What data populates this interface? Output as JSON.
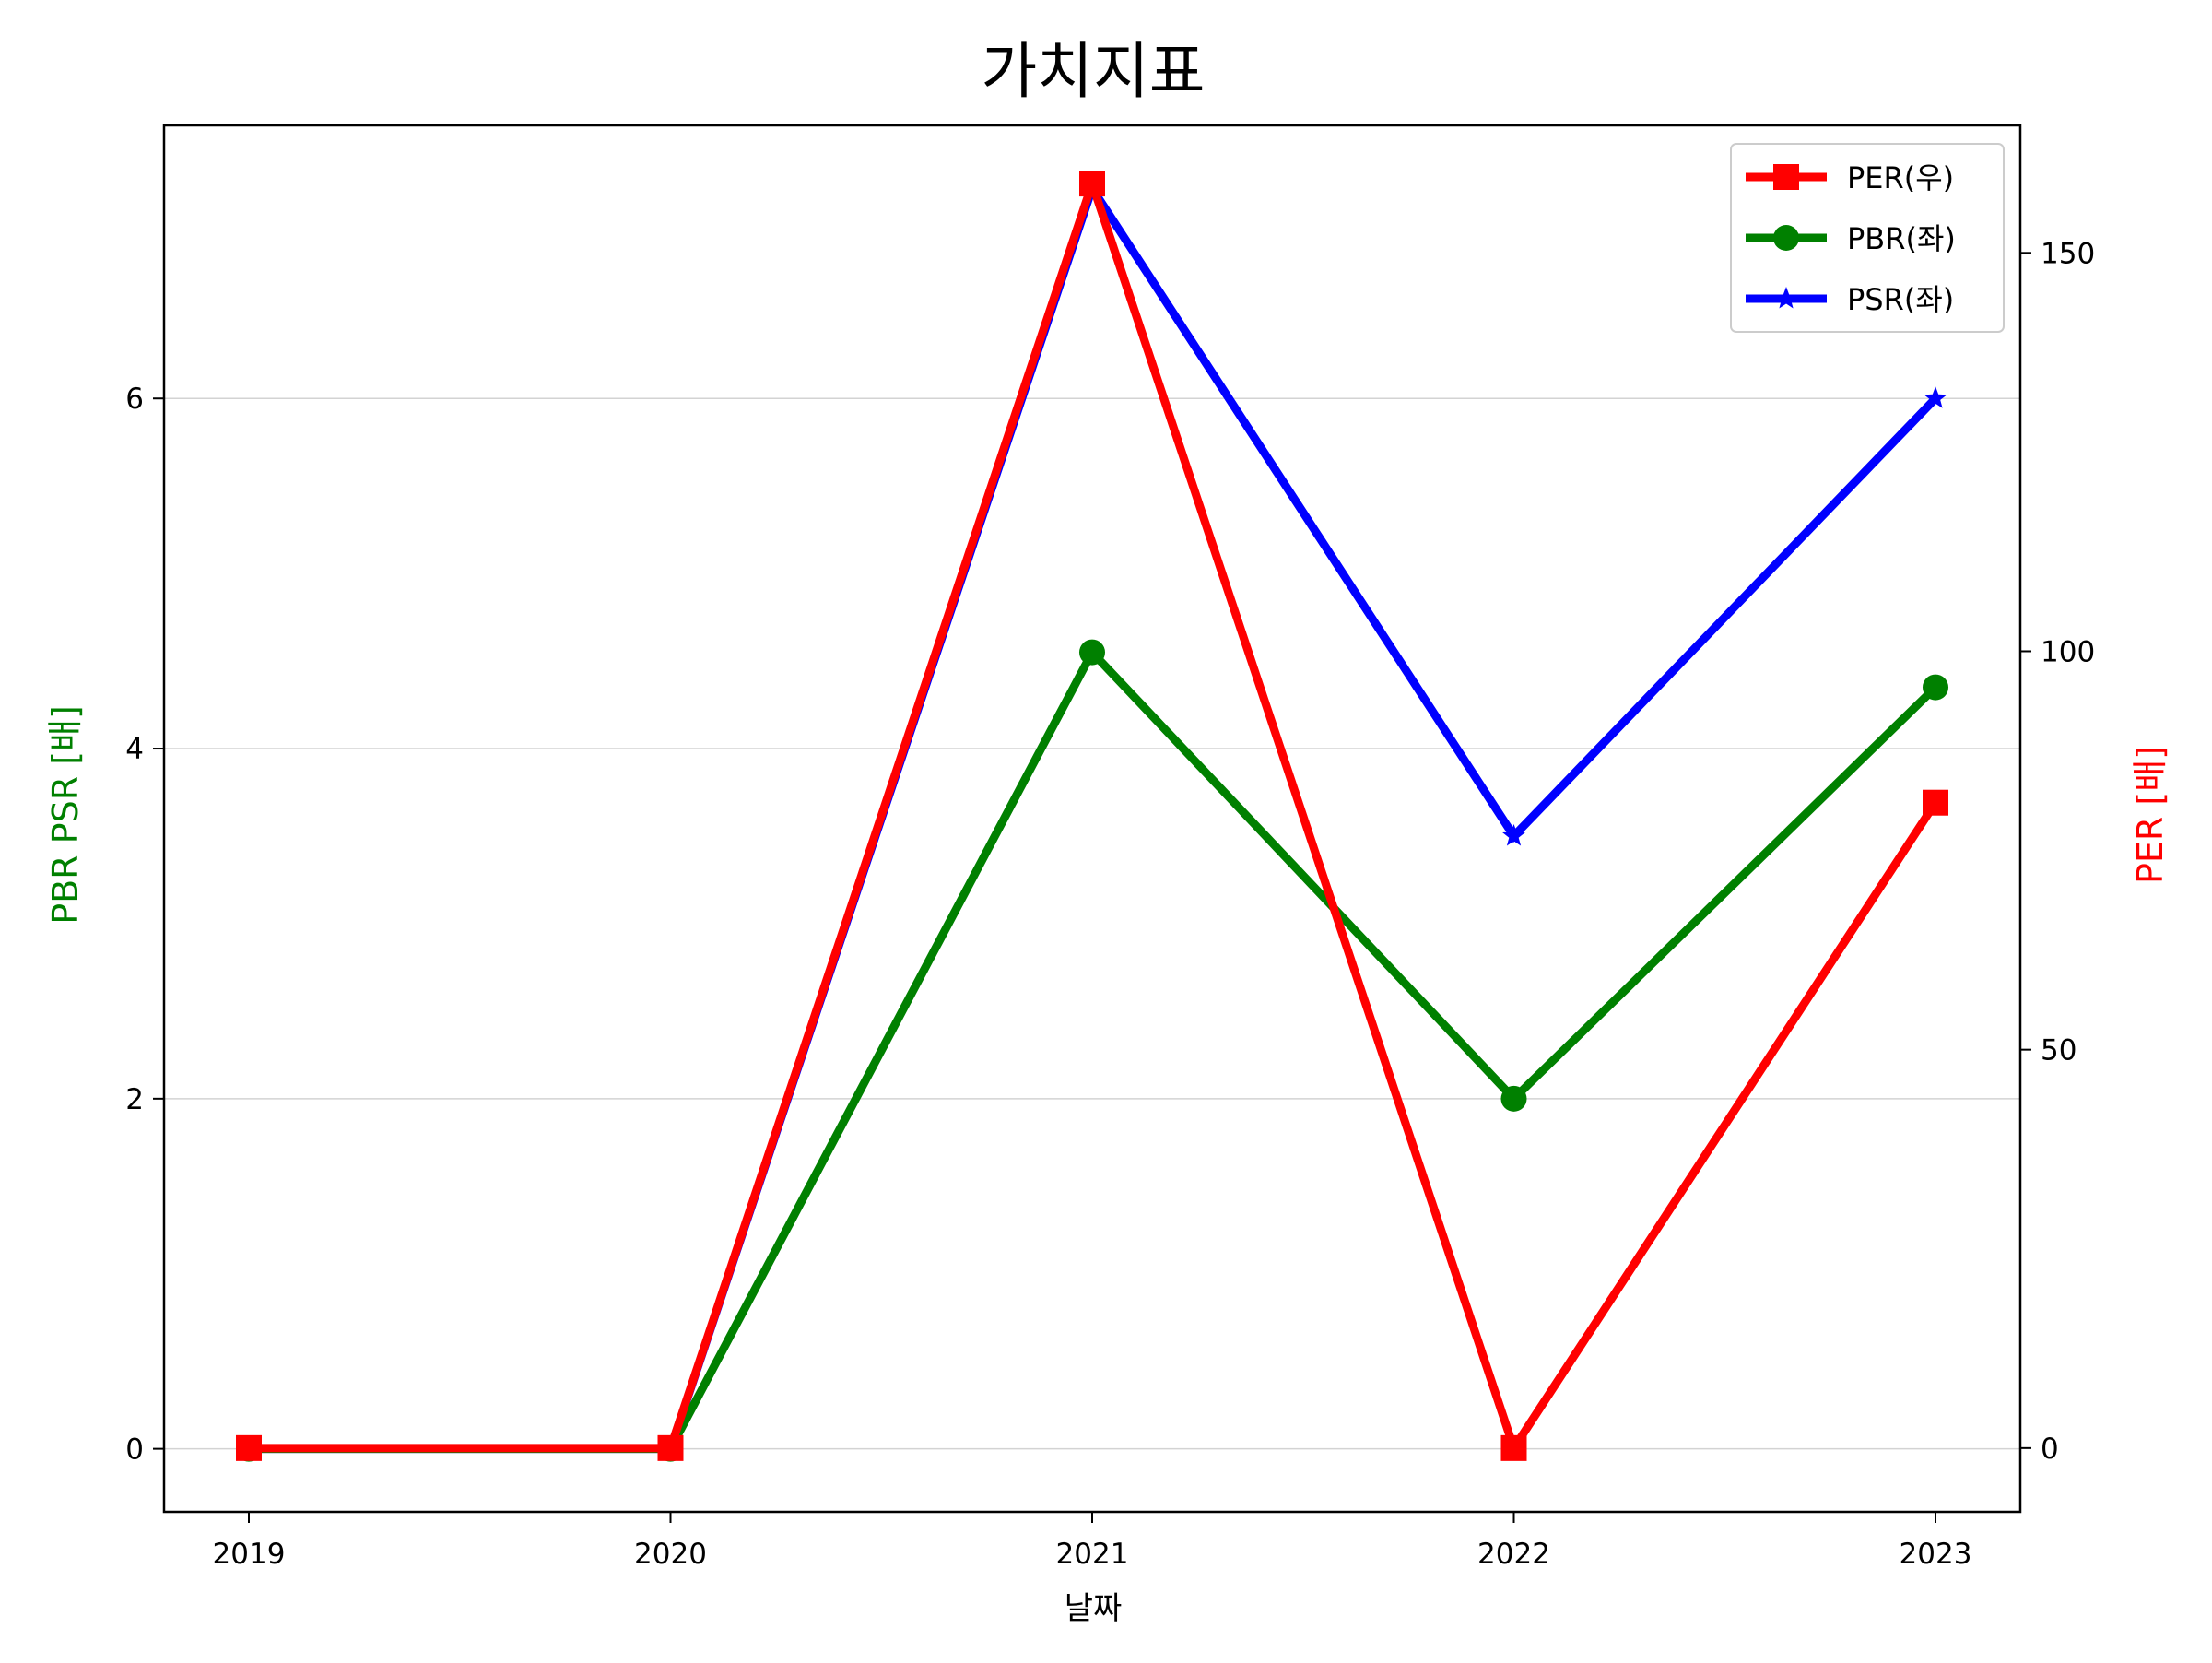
{
  "chart_data": {
    "type": "line",
    "title": "가치지표",
    "xlabel": "날짜",
    "ylabel_left": "PBR PSR [배]",
    "ylabel_right": "PER [배]",
    "ylabel_left_color": "#008000",
    "ylabel_right_color": "#ff0000",
    "categories": [
      "2019",
      "2020",
      "2021",
      "2022",
      "2023"
    ],
    "ylim_left": [
      -0.36,
      7.56
    ],
    "yticks_left": [
      0,
      2,
      4,
      6
    ],
    "ylim_right": [
      -8,
      166
    ],
    "yticks_right": [
      0,
      50,
      100,
      150
    ],
    "grid": "horizontal (left axis)",
    "legend_position": "top-right",
    "series": [
      {
        "name": "PER(우)",
        "axis": "right",
        "color": "#ff0000",
        "marker": "square",
        "values": [
          0,
          0,
          158.7,
          0,
          81.0
        ]
      },
      {
        "name": "PBR(좌)",
        "axis": "left",
        "color": "#008000",
        "marker": "circle",
        "values": [
          0,
          0,
          4.55,
          2.0,
          4.35
        ]
      },
      {
        "name": "PSR(좌)",
        "axis": "left",
        "color": "#0000ff",
        "marker": "star",
        "values": [
          0,
          0,
          7.2,
          3.5,
          6.0
        ]
      }
    ]
  }
}
